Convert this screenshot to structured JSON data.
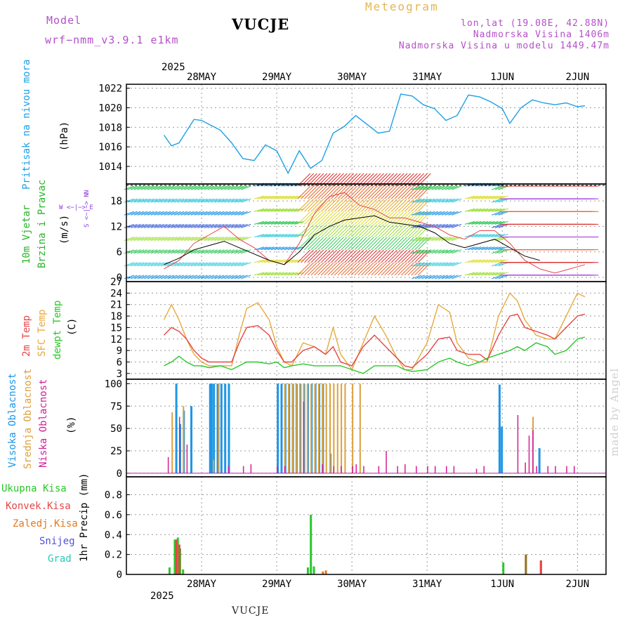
{
  "header": {
    "model_label": "Model",
    "model_value": "wrf−nmm_v3.9.1 e1km",
    "station": "VUCJE",
    "meteogram": "Meteogram",
    "lonlat": "lon,lat (19.08E, 42.88N)",
    "elevation": "Nadmorska Visina 1406m",
    "elevation_model": "Nadmorska Visina u modelu 1449.47m"
  },
  "footer": {
    "station": "VUCJE",
    "watermark": "made by Angel"
  },
  "colors": {
    "pressure": "#1ea0e6",
    "wind_label": "#28b428",
    "temp2m": "#e64646",
    "sfc": "#e6aa3c",
    "dew": "#28c828",
    "high_cloud": "#1e96e6",
    "mid_cloud": "#dca03c",
    "low_cloud": "#d21e96",
    "total_rain": "#28c828",
    "conv_rain": "#e64646",
    "frozen": "#e6781e",
    "snow": "#5050dc",
    "hail": "#28c8b4"
  },
  "chart_data": [
    {
      "type": "line",
      "name": "pressure",
      "ylabel_main": "Pritisak na nivou mora",
      "ylabel_unit": "(hPa)",
      "yticks": [
        "1014",
        "1016",
        "1018",
        "1020",
        "1022"
      ],
      "ylim": [
        1012.2,
        1022.4
      ],
      "x": [
        0,
        0.1,
        0.2,
        0.3,
        0.4,
        0.5,
        0.6,
        0.75,
        0.9,
        1.05,
        1.2,
        1.35,
        1.5,
        1.65,
        1.8,
        1.95,
        2.1,
        2.25,
        2.4,
        2.55,
        2.7,
        2.85,
        3.0,
        3.15,
        3.3,
        3.45,
        3.6,
        3.75,
        3.9,
        4.05,
        4.2,
        4.35,
        4.5,
        4.6,
        4.75,
        4.9,
        5.05,
        5.2,
        5.35,
        5.5,
        5.6
      ],
      "y": [
        1017.2,
        1016.1,
        1016.4,
        1017.6,
        1018.8,
        1018.7,
        1018.3,
        1017.7,
        1016.4,
        1014.8,
        1014.6,
        1016.2,
        1015.6,
        1013.3,
        1015.6,
        1013.8,
        1014.6,
        1017.4,
        1018.1,
        1019.2,
        1018.3,
        1017.4,
        1017.6,
        1021.4,
        1021.2,
        1020.3,
        1019.9,
        1018.7,
        1019.2,
        1021.3,
        1021.1,
        1020.6,
        1019.9,
        1018.4,
        1020.0,
        1020.8,
        1020.5,
        1020.3,
        1020.5,
        1020.1,
        1020.2
      ],
      "grid": true
    },
    {
      "type": "line",
      "name": "wind",
      "ylabel_main": "10m Vjetar",
      "ylabel_sub": "Brzina i Pravac",
      "ylabel_unit": "(m/s)",
      "compass_n": "N",
      "compass_row": "W <−|−> E",
      "compass_s": "S <−|−> N",
      "yticks": [
        "0",
        "6",
        "12",
        "18"
      ],
      "ylim": [
        -1,
        22
      ],
      "series": [
        {
          "values_label": "mean",
          "x": [
            0,
            0.2,
            0.4,
            0.6,
            0.8,
            1.0,
            1.2,
            1.4,
            1.6,
            1.8,
            2.0,
            2.2,
            2.4,
            2.6,
            2.8,
            3.0,
            3.2,
            3.4,
            3.6,
            3.8,
            4.0,
            4.2,
            4.4,
            4.6,
            4.8,
            5.0
          ],
          "y": [
            3,
            4.5,
            6.5,
            7.5,
            8.5,
            7,
            5.5,
            4,
            3,
            6,
            10,
            12,
            13.5,
            14,
            14.5,
            13,
            12.5,
            12,
            10.5,
            8,
            7,
            8,
            9,
            7,
            5,
            4
          ]
        },
        {
          "values_label": "gust",
          "x": [
            0,
            0.2,
            0.4,
            0.6,
            0.8,
            1.0,
            1.2,
            1.4,
            1.6,
            1.8,
            2.0,
            2.2,
            2.4,
            2.6,
            2.8,
            3.0,
            3.2,
            3.4,
            3.6,
            3.8,
            4.0,
            4.2,
            4.4,
            4.6,
            4.8,
            5.0,
            5.2,
            5.4,
            5.6
          ],
          "y": [
            2,
            4,
            8,
            10,
            12,
            9,
            7,
            4,
            3,
            8,
            15,
            19,
            20,
            17,
            16,
            14,
            14,
            13,
            12,
            10,
            9,
            11,
            11,
            8,
            4,
            2,
            1,
            2,
            3
          ]
        }
      ]
    },
    {
      "type": "line",
      "name": "temperature",
      "ylabel_t2": "2m Temp",
      "ylabel_sfc": "SFC Temp",
      "ylabel_dew": "dewpt Temp",
      "ylabel_unit": "(C)",
      "yticks": [
        "3",
        "6",
        "9",
        "12",
        "15",
        "18",
        "21",
        "24",
        "27"
      ],
      "ylim": [
        1.5,
        27
      ],
      "x": [
        0,
        0.1,
        0.2,
        0.3,
        0.4,
        0.5,
        0.6,
        0.75,
        0.9,
        1.0,
        1.1,
        1.25,
        1.4,
        1.5,
        1.6,
        1.7,
        1.85,
        2.0,
        2.15,
        2.25,
        2.35,
        2.5,
        2.65,
        2.8,
        2.95,
        3.1,
        3.2,
        3.3,
        3.5,
        3.65,
        3.8,
        3.9,
        4.05,
        4.2,
        4.3,
        4.45,
        4.6,
        4.7,
        4.8,
        4.95,
        5.1,
        5.2,
        5.35,
        5.5,
        5.6
      ],
      "series": [
        {
          "name": "t2",
          "y": [
            13,
            15,
            14,
            12,
            9,
            7,
            6,
            6,
            6,
            11,
            15,
            15.5,
            13,
            9,
            6,
            6,
            9,
            10,
            8,
            10,
            6,
            5,
            10,
            13,
            10,
            7,
            5,
            4.5,
            8,
            12,
            12.5,
            9,
            8,
            8,
            6.5,
            13,
            18,
            18.5,
            15,
            14,
            13,
            12,
            15,
            18,
            18.5
          ]
        },
        {
          "name": "sfc",
          "y": [
            17,
            21,
            17,
            12,
            8,
            6,
            5,
            5,
            5,
            13,
            20,
            21.5,
            17,
            10,
            6,
            5,
            11,
            10,
            8,
            15,
            8,
            4,
            11,
            18,
            13,
            7,
            4,
            4,
            11,
            21,
            19,
            11,
            7,
            6,
            6,
            18,
            24,
            22,
            17,
            13,
            12,
            12,
            18,
            24,
            23
          ]
        },
        {
          "name": "dew",
          "y": [
            5,
            6,
            7.5,
            6,
            5,
            5,
            4.5,
            5,
            4,
            5,
            6,
            6,
            5.5,
            6,
            4.5,
            5,
            5.5,
            5,
            5,
            5,
            5,
            4,
            3,
            5,
            5,
            5,
            4,
            3.5,
            4,
            6,
            7,
            6,
            5,
            6,
            7,
            8,
            9,
            10,
            9,
            11,
            10,
            8,
            9,
            12,
            12.5
          ]
        }
      ]
    },
    {
      "type": "bar",
      "name": "cloud",
      "ylabel_high": "Visoka Oblacnost",
      "ylabel_mid": "Srednja Oblacnost",
      "ylabel_low": "Niska Oblacnost",
      "ylabel_unit": "(%)",
      "yticks": [
        "0",
        "25",
        "50",
        "75",
        "100"
      ],
      "ylim": [
        -4,
        105
      ],
      "series": [
        {
          "name": "high",
          "x": [
            0.15,
            0.2,
            0.25,
            0.35,
            0.6,
            0.62,
            0.65,
            0.7,
            0.75,
            0.8,
            0.85,
            1.5,
            1.55,
            1.6,
            1.65,
            1.7,
            1.75,
            1.8,
            1.85,
            1.9,
            1.95,
            2.0,
            2.05,
            2.1,
            2.2,
            4.45,
            4.48,
            4.98
          ],
          "y": [
            100,
            55,
            70,
            75,
            100,
            100,
            100,
            100,
            100,
            100,
            100,
            100,
            100,
            100,
            100,
            100,
            100,
            100,
            100,
            100,
            100,
            100,
            100,
            100,
            22,
            99,
            52,
            28
          ]
        },
        {
          "name": "mid",
          "x": [
            0.1,
            0.25,
            0.65,
            0.72,
            1.6,
            1.65,
            1.7,
            1.75,
            1.8,
            1.85,
            1.9,
            1.95,
            2.0,
            2.05,
            2.1,
            2.15,
            2.2,
            2.25,
            2.3,
            2.35,
            2.4,
            2.5,
            2.6,
            4.9
          ],
          "y": [
            68,
            75,
            15,
            100,
            100,
            100,
            100,
            100,
            100,
            100,
            100,
            100,
            100,
            100,
            100,
            100,
            100,
            100,
            100,
            100,
            100,
            100,
            100,
            63
          ]
        },
        {
          "name": "low",
          "x": [
            0.05,
            0.2,
            0.3,
            0.85,
            1.05,
            1.15,
            1.5,
            1.6,
            1.85,
            2.1,
            2.25,
            2.35,
            2.5,
            2.55,
            2.65,
            2.85,
            2.95,
            3.1,
            3.2,
            3.35,
            3.5,
            3.6,
            3.75,
            3.85,
            4.15,
            4.25,
            4.7,
            4.8,
            4.85,
            4.9,
            4.95,
            5.1,
            5.2,
            5.35,
            5.45
          ],
          "y": [
            18,
            63,
            32,
            8,
            8,
            10,
            8,
            8,
            80,
            10,
            8,
            8,
            8,
            10,
            8,
            8,
            25,
            8,
            10,
            8,
            8,
            8,
            8,
            8,
            5,
            8,
            65,
            12,
            42,
            48,
            8,
            8,
            8,
            8,
            8
          ]
        }
      ]
    },
    {
      "type": "bar",
      "name": "precip",
      "ylabel_unit": "1hr Precip (mm)",
      "legend": [
        "Ukupna Kisa",
        "Konvek.Kisa",
        "Zaledj.Kisa",
        "Snijeg",
        "Grad"
      ],
      "yticks": [
        "0",
        "0.2",
        "0.4",
        "0.6",
        "0.8"
      ],
      "ylim": [
        0,
        0.98
      ],
      "series": [
        {
          "name": "total",
          "x": [
            0.06,
            0.13,
            0.17,
            0.2,
            0.24,
            1.9,
            1.94,
            1.98,
            5.0
          ],
          "y": [
            0.07,
            0.35,
            0.37,
            0.26,
            0.05,
            0.07,
            0.6,
            0.08,
            0.14
          ]
        },
        {
          "name": "conv",
          "x": [
            0.15,
            0.19,
            5.0
          ],
          "y": [
            0.35,
            0.3,
            0.14
          ]
        },
        {
          "name": "frozen",
          "x": [
            2.1,
            2.14,
            4.8
          ],
          "y": [
            0.03,
            0.04,
            0.2
          ]
        },
        {
          "name": "olive",
          "x": [
            4.8
          ],
          "y": [
            0.2
          ]
        },
        {
          "name": "small",
          "x": [
            4.5
          ],
          "y": [
            0.12
          ]
        }
      ]
    }
  ],
  "x_axis": {
    "top_year": "2025",
    "bottom_year": "2025",
    "dates": [
      "28MAY",
      "29MAY",
      "30MAY",
      "31MAY",
      "1JUN",
      "2JUN"
    ],
    "date_positions": [
      0.5,
      1.5,
      2.5,
      3.5,
      4.5,
      5.5
    ],
    "xlim": [
      -0.5,
      5.88
    ]
  }
}
